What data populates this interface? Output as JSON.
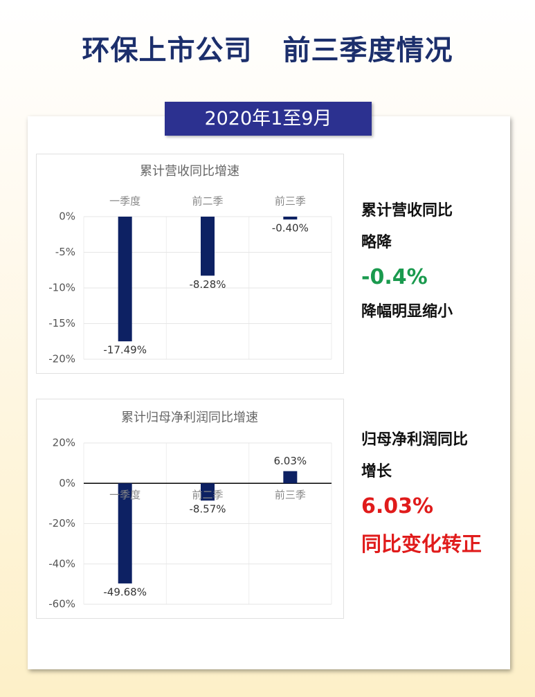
{
  "header": {
    "title": [
      "环保上市公司",
      "前三季度情况"
    ],
    "period": "2020年1至9月"
  },
  "chart_data": [
    {
      "type": "bar",
      "title": "累计营收同比增速",
      "categories": [
        "一季度",
        "前二季",
        "前三季"
      ],
      "values": [
        -17.49,
        -8.28,
        -0.4
      ],
      "value_labels": [
        "-17.49%",
        "-8.28%",
        "-0.40%"
      ],
      "color": "#0d2163",
      "ylim": [
        -20,
        0
      ],
      "yticks": [
        {
          "value": 0,
          "label": "0%"
        },
        {
          "value": -5,
          "label": "-5%"
        },
        {
          "value": -10,
          "label": "-10%"
        },
        {
          "value": -15,
          "label": "-15%"
        },
        {
          "value": -20,
          "label": "-20%"
        }
      ],
      "grid": true
    },
    {
      "type": "bar",
      "title": "累计归母净利润同比增速",
      "categories": [
        "一季度",
        "前二季",
        "前三季"
      ],
      "values": [
        -49.68,
        -8.57,
        6.03
      ],
      "value_labels": [
        "-49.68%",
        "-8.57%",
        "6.03%"
      ],
      "color": "#0d2163",
      "ylim": [
        -60,
        20
      ],
      "yticks": [
        {
          "value": 20,
          "label": "20%"
        },
        {
          "value": 0,
          "label": "0%"
        },
        {
          "value": -20,
          "label": "-20%"
        },
        {
          "value": -40,
          "label": "-40%"
        },
        {
          "value": -60,
          "label": "-60%"
        }
      ],
      "grid": true
    }
  ],
  "notes": [
    {
      "lines": [
        "累计营收同比",
        "略降"
      ],
      "figure": "-0.4%",
      "conclusion": "降幅明显缩小"
    },
    {
      "lines": [
        "归母净利润同比",
        "增长"
      ],
      "figure": "6.03%",
      "conclusion": "同比变化转正"
    }
  ]
}
